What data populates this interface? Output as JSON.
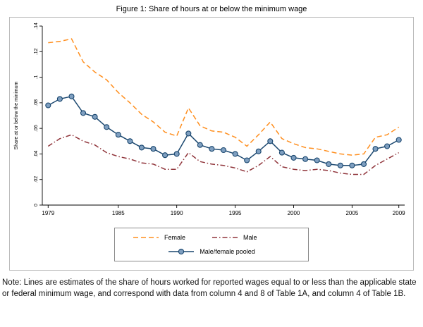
{
  "title": "Figure 1: Share of hours at or below the minimum wage",
  "note": "Note: Lines are estimates of the share of hours worked for reported wages equal to or less than the applicable state or federal minimum wage, and correspond with data from column 4 and 8 of Table 1A, and column 4 of Table 1B.",
  "chart_data": {
    "type": "line",
    "title": "Figure 1: Share of hours at or below the minimum wage",
    "xlabel": "",
    "ylabel": "Share at or below the minimum",
    "x": [
      1979,
      1980,
      1981,
      1982,
      1983,
      1984,
      1985,
      1986,
      1987,
      1988,
      1989,
      1990,
      1991,
      1992,
      1993,
      1994,
      1995,
      1996,
      1997,
      1998,
      1999,
      2000,
      2001,
      2002,
      2003,
      2004,
      2005,
      2006,
      2007,
      2008,
      2009
    ],
    "xticks": [
      1979,
      1985,
      1990,
      1995,
      2000,
      2005,
      2009
    ],
    "yticks": [
      0,
      0.02,
      0.04,
      0.06,
      0.08,
      0.1,
      0.12,
      0.14
    ],
    "ytick_labels": [
      "0",
      ".02",
      ".04",
      ".06",
      ".08",
      ".1",
      ".12",
      ".14"
    ],
    "ylim": [
      0,
      0.14
    ],
    "grid": false,
    "legend_position": "bottom",
    "axis_color": "#000000",
    "series": [
      {
        "name": "Female",
        "color": "#ff8f1f",
        "style": "dashed",
        "marker": "none",
        "values": [
          0.127,
          0.128,
          0.13,
          0.112,
          0.104,
          0.098,
          0.088,
          0.08,
          0.071,
          0.065,
          0.057,
          0.054,
          0.076,
          0.062,
          0.058,
          0.057,
          0.053,
          0.046,
          0.055,
          0.065,
          0.052,
          0.048,
          0.045,
          0.044,
          0.042,
          0.04,
          0.039,
          0.04,
          0.053,
          0.055,
          0.061
        ]
      },
      {
        "name": "Male",
        "color": "#90353b",
        "style": "dash-dot",
        "marker": "none",
        "values": [
          0.046,
          0.052,
          0.055,
          0.05,
          0.047,
          0.041,
          0.038,
          0.036,
          0.033,
          0.032,
          0.028,
          0.028,
          0.041,
          0.034,
          0.032,
          0.031,
          0.029,
          0.026,
          0.031,
          0.038,
          0.03,
          0.028,
          0.027,
          0.028,
          0.027,
          0.025,
          0.024,
          0.024,
          0.031,
          0.036,
          0.041
        ]
      },
      {
        "name": "Male/female pooled",
        "color": "#1a476f",
        "style": "solid",
        "marker": "circle",
        "marker_fill": "#7f9fc0",
        "values": [
          0.078,
          0.083,
          0.085,
          0.072,
          0.069,
          0.061,
          0.055,
          0.05,
          0.045,
          0.044,
          0.039,
          0.04,
          0.056,
          0.047,
          0.044,
          0.043,
          0.04,
          0.035,
          0.042,
          0.05,
          0.041,
          0.037,
          0.036,
          0.035,
          0.032,
          0.031,
          0.031,
          0.032,
          0.044,
          0.046,
          0.051
        ]
      }
    ]
  }
}
